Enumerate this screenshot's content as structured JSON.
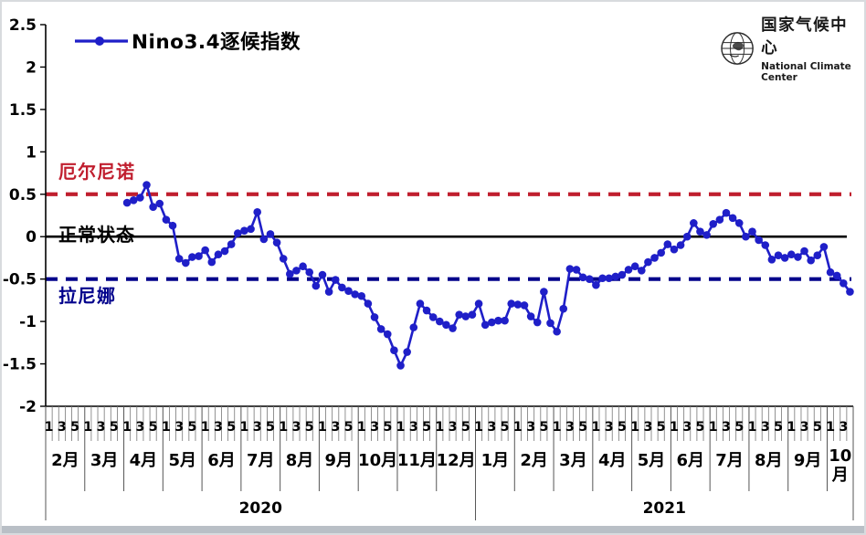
{
  "legend": {
    "label": "Nino3.4逐候指数"
  },
  "logo": {
    "cn": "国家气候中心",
    "en": "National Climate Center"
  },
  "annotations": {
    "el_nino": "厄尔尼诺",
    "normal": "正常状态",
    "la_nina": "拉尼娜"
  },
  "colors": {
    "series": "#1f1fc8",
    "el_nino_line": "#c01e2e",
    "la_nina_line": "#00008b",
    "normal_line": "#000000"
  },
  "chart_data": {
    "type": "line",
    "title": "Nino3.4逐候指数",
    "ylabel": "",
    "xlabel": "",
    "ylim": [
      -2,
      2.5
    ],
    "grid": false,
    "legend_position": "top-left",
    "y_ticks": [
      "2.5",
      "2",
      "1.5",
      "1",
      "0.5",
      "0",
      "-0.5",
      "-1",
      "-1.5",
      "-2"
    ],
    "reference_lines": [
      {
        "name": "el-nino-threshold",
        "label": "厄尔尼诺",
        "value": 0.5,
        "style": "dashed",
        "color": "#c01e2e"
      },
      {
        "name": "normal-state",
        "label": "正常状态",
        "value": 0,
        "style": "solid",
        "color": "#000000"
      },
      {
        "name": "la-nina-threshold",
        "label": "拉尼娜",
        "value": -0.5,
        "style": "dashed",
        "color": "#00008b"
      }
    ],
    "x_axis": {
      "pentad_tick_labels": [
        "1",
        "3",
        "5"
      ],
      "pentads_per_month": 6,
      "last_month_pentads": 4,
      "months": [
        "2月",
        "3月",
        "4月",
        "5月",
        "6月",
        "7月",
        "8月",
        "9月",
        "10月",
        "11月",
        "12月",
        "1月",
        "2月",
        "3月",
        "4月",
        "5月",
        "6月",
        "7月",
        "8月",
        "9月",
        "10月"
      ],
      "years": [
        {
          "label": "2020",
          "months": 11
        },
        {
          "label": "2021",
          "months": 10
        }
      ]
    },
    "series": [
      {
        "name": "Nino3.4逐候指数",
        "color": "#1f1fc8",
        "start_month": "2020-04",
        "start_pentad_index": 12,
        "values": [
          0.4,
          0.43,
          0.46,
          0.61,
          0.35,
          0.39,
          0.2,
          0.13,
          -0.26,
          -0.31,
          -0.24,
          -0.23,
          -0.16,
          -0.3,
          -0.21,
          -0.17,
          -0.09,
          0.04,
          0.07,
          0.09,
          0.29,
          -0.03,
          0.03,
          -0.07,
          -0.26,
          -0.44,
          -0.4,
          -0.35,
          -0.42,
          -0.58,
          -0.45,
          -0.65,
          -0.51,
          -0.6,
          -0.64,
          -0.68,
          -0.7,
          -0.79,
          -0.95,
          -1.09,
          -1.15,
          -1.34,
          -1.52,
          -1.36,
          -1.07,
          -0.79,
          -0.87,
          -0.95,
          -1.0,
          -1.04,
          -1.08,
          -0.92,
          -0.94,
          -0.92,
          -0.79,
          -1.04,
          -1.01,
          -0.99,
          -0.99,
          -0.79,
          -0.8,
          -0.81,
          -0.94,
          -1.01,
          -0.65,
          -1.02,
          -1.12,
          -0.85,
          -0.38,
          -0.39,
          -0.48,
          -0.5,
          -0.57,
          -0.49,
          -0.49,
          -0.47,
          -0.45,
          -0.39,
          -0.35,
          -0.4,
          -0.3,
          -0.25,
          -0.19,
          -0.09,
          -0.15,
          -0.1,
          0.0,
          0.16,
          0.06,
          0.02,
          0.15,
          0.2,
          0.28,
          0.22,
          0.16,
          0.0,
          0.06,
          -0.04,
          -0.1,
          -0.27,
          -0.22,
          -0.25,
          -0.21,
          -0.24,
          -0.17,
          -0.28,
          -0.22,
          -0.12,
          -0.42,
          -0.46,
          -0.55,
          -0.65
        ]
      }
    ]
  }
}
